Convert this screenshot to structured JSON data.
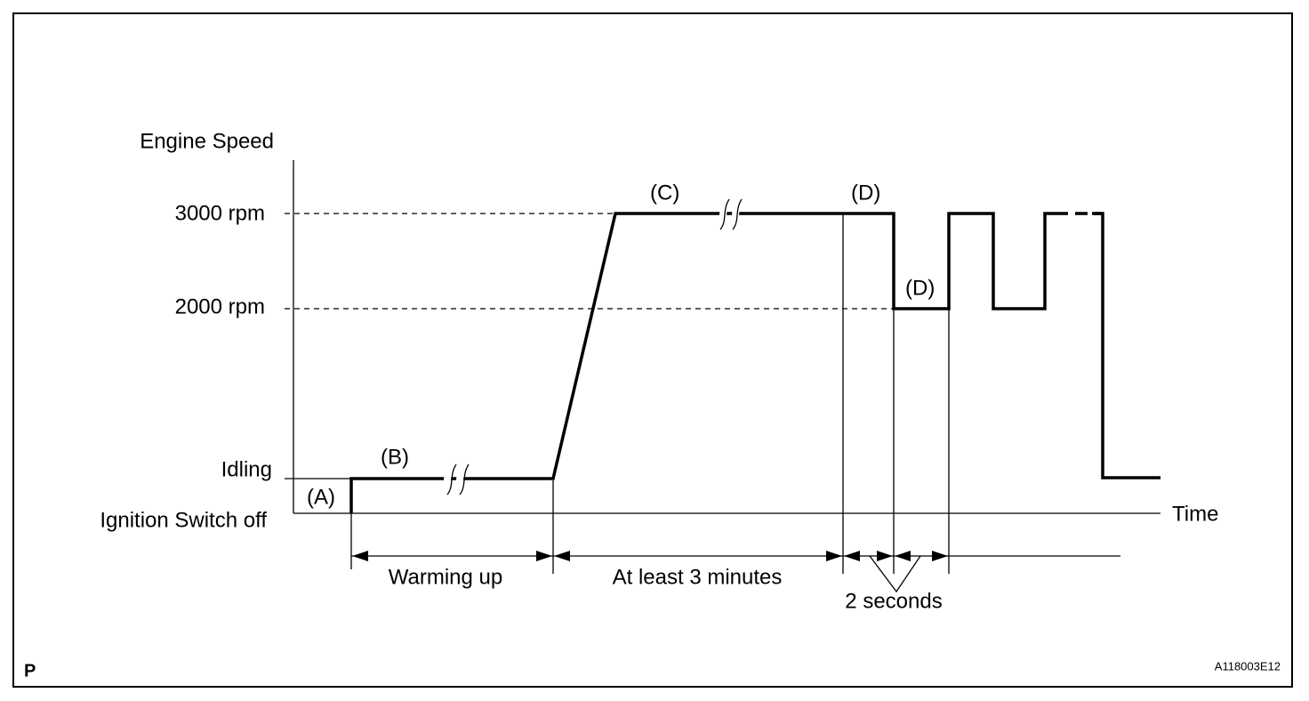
{
  "y_axis": {
    "title": "Engine Speed",
    "levels": [
      "3000 rpm",
      "2000 rpm",
      "Idling",
      "Ignition Switch off"
    ]
  },
  "x_axis": {
    "title": "Time"
  },
  "phase_labels": [
    "(A)",
    "(B)",
    "(C)",
    "(D)",
    "(D)"
  ],
  "durations": [
    "Warming up",
    "At least 3 minutes",
    "2 seconds"
  ],
  "corner_mark": "P",
  "figure_id": "A118003E12"
}
